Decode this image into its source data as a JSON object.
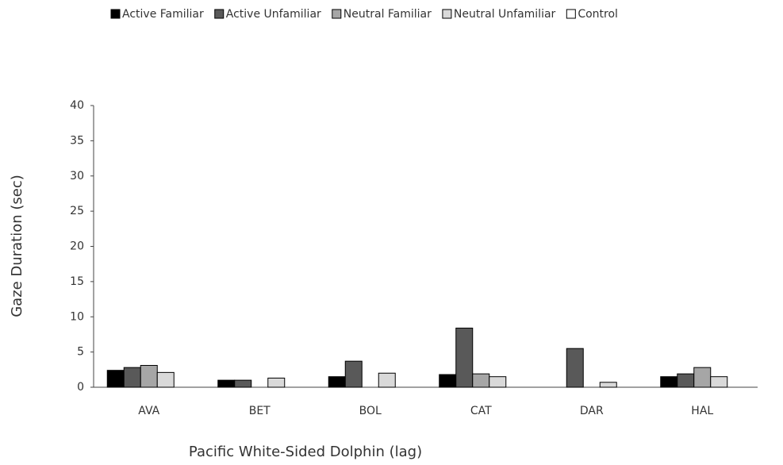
{
  "chart_data": {
    "type": "bar",
    "x_label": "Pacific White-Sided Dolphin (lag)",
    "y_label": "Gaze Duration (sec)",
    "categories": [
      "AVA",
      "BET",
      "BOL",
      "CAT",
      "DAR",
      "HAL"
    ],
    "series": [
      {
        "name": "Active Familiar",
        "color": "#000000",
        "values": [
          2.4,
          1.0,
          1.5,
          1.8,
          0,
          1.5
        ]
      },
      {
        "name": "Active Unfamiliar",
        "color": "#595959",
        "values": [
          2.8,
          1.0,
          3.7,
          8.4,
          5.5,
          1.9
        ]
      },
      {
        "name": "Neutral Familiar",
        "color": "#a6a6a6",
        "values": [
          3.1,
          0,
          0,
          1.9,
          0,
          2.8
        ]
      },
      {
        "name": "Neutral Unfamiliar",
        "color": "#d9d9d9",
        "values": [
          2.1,
          1.3,
          2.0,
          1.5,
          0.7,
          1.5
        ]
      },
      {
        "name": "Control",
        "color": "#ffffff",
        "values": [
          0,
          0,
          0,
          0,
          0,
          0
        ]
      }
    ],
    "ylim": [
      0,
      40
    ],
    "yticks": [
      0,
      5,
      10,
      15,
      20,
      25,
      30,
      35,
      40
    ],
    "grid": false,
    "legend": "top"
  }
}
